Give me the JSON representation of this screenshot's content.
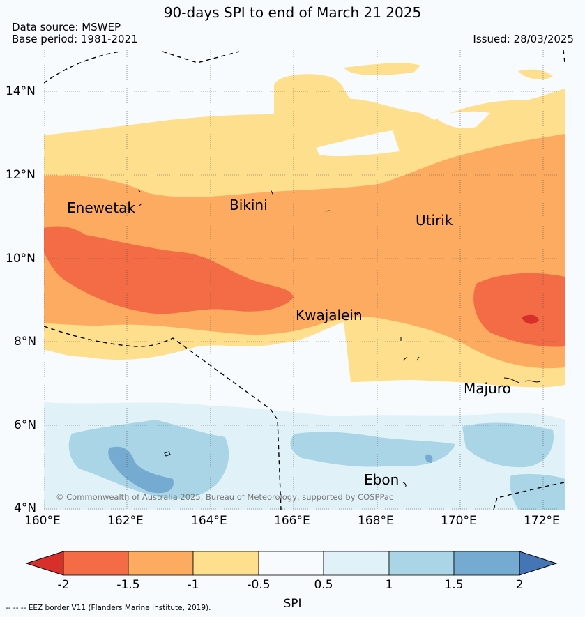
{
  "title": "90-days SPI to end of March 21 2025",
  "data_source": "Data source: MSWEP",
  "base_period": "Base period: 1981-2021",
  "issued": "Issued: 28/03/2025",
  "copyright": "© Commonwealth of Australia 2025, Bureau of Meteorology, supported by COSPPac",
  "lat_labels": [
    "14°N",
    "12°N",
    "10°N",
    "8°N",
    "6°N",
    "4°N"
  ],
  "lon_labels": [
    "160°E",
    "162°E",
    "164°E",
    "166°E",
    "168°E",
    "170°E",
    "172°E"
  ],
  "places": {
    "enewetak": "Enewetak",
    "bikini": "Bikini",
    "utirik": "Utirik",
    "kwajalein": "Kwajalein",
    "majuro": "Majuro",
    "ebon": "Ebon"
  },
  "colorbar": {
    "label": "SPI",
    "ticks": [
      "-2",
      "-1.5",
      "-1",
      "-0.5",
      "0.5",
      "1",
      "1.5",
      "2"
    ],
    "colors": [
      "#d7302a",
      "#f46c45",
      "#fdab60",
      "#fedf8d",
      "#f7fbfd",
      "#e0f2f8",
      "#a9d5e6",
      "#75aad1",
      "#4575b4"
    ]
  },
  "eez_note": "--  --  -- EEZ border V11 (Flanders Marine Institute, 2019)."
}
